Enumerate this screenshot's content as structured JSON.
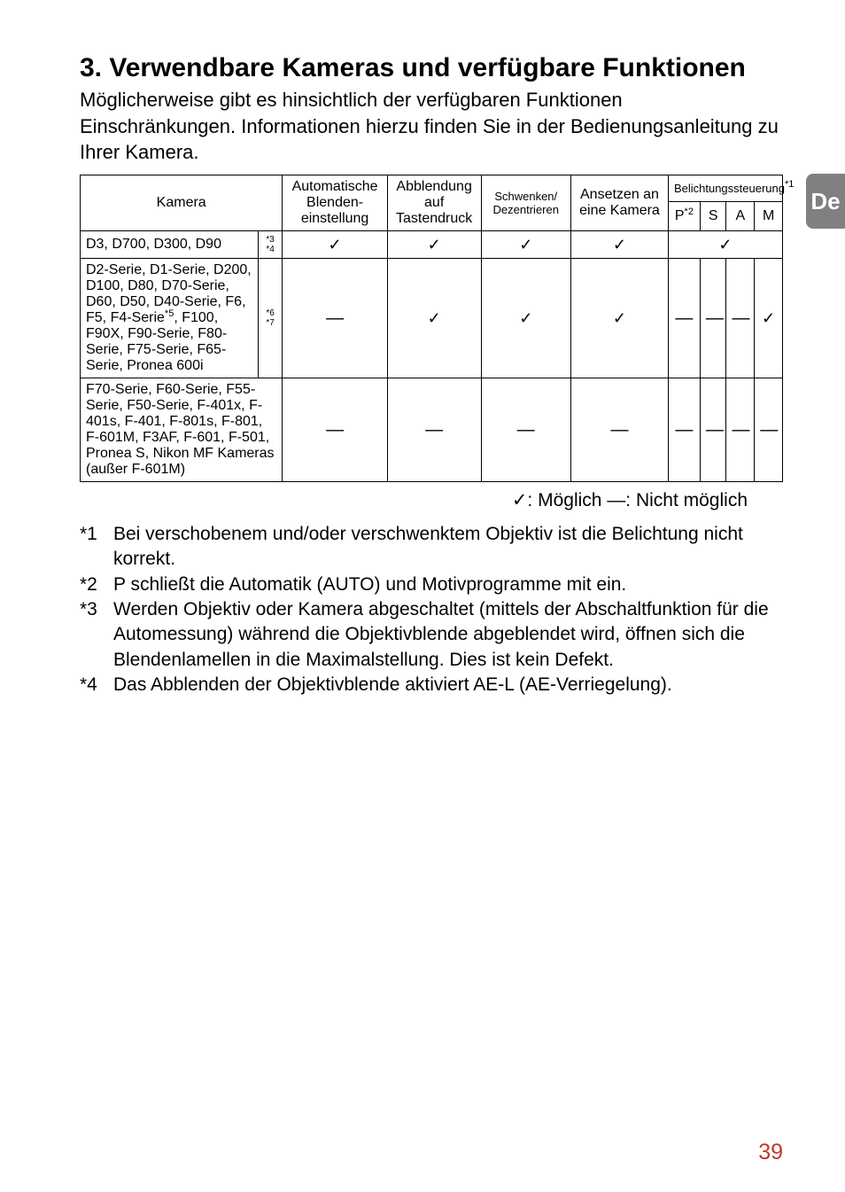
{
  "heading": "3. Verwendbare Kameras und verfügbare Funktionen",
  "intro": "Möglicherweise gibt es hinsichtlich der verfügbaren Funktionen Einschränkungen. Informationen hierzu finden Sie in der Bedienungsanleitung zu Ihrer Kamera.",
  "table": {
    "head": {
      "kamera": "Kamera",
      "auto_blenden": "Automatische Blenden-\neinstellung",
      "abblendung": "Abblendung auf Tastendruck",
      "schwenken": "Schwenken/\nDezentrieren",
      "ansetzen": "Ansetzen an eine Kamera",
      "belichtung": "Belichtungssteuerung",
      "belichtung_sup": "*1",
      "p": "P",
      "p_sup": "*2",
      "s": "S",
      "a": "A",
      "m": "M"
    },
    "rows": [
      {
        "cam": "D3, D700, D300, D90",
        "notes": "*3\n*4",
        "notes_present": true,
        "r1": "✓",
        "r2": "✓",
        "r3": "✓",
        "r4": "✓",
        "psam_merged": true,
        "psam_value": "✓"
      },
      {
        "cam": "D2-Serie, D1-Serie, D200, D100, D80, D70-Serie, D60, D50, D40-Serie, F6, F5, F4-Serie*5, F100, F90X, F90-Serie, F80-Serie, F75-Serie, F65-Serie, Pronea 600i",
        "cam_sup_marker": "*5",
        "notes": "*6\n*7",
        "notes_present": true,
        "r1": "—",
        "r2": "✓",
        "r3": "✓",
        "r4": "✓",
        "psam_merged": false,
        "p": "—",
        "s": "—",
        "a": "—",
        "m": "✓"
      },
      {
        "cam": "F70-Serie, F60-Serie, F55-Serie, F50-Serie, F-401x, F-401s, F-401, F-801s, F-801, F-601M, F3AF, F-601, F-501, Pronea S, Nikon MF Kameras (außer F-601M)",
        "notes": "",
        "notes_present": false,
        "r1": "—",
        "r2": "—",
        "r3": "—",
        "r4": "—",
        "psam_merged": false,
        "p": "—",
        "s": "—",
        "a": "—",
        "m": "—"
      }
    ]
  },
  "legend": "✓: Möglich   —: Nicht möglich",
  "footnotes": [
    {
      "marker": "*1",
      "text": "Bei verschobenem und/oder verschwenktem Objektiv ist die Belichtung nicht korrekt."
    },
    {
      "marker": "*2",
      "text": "P schließt die Automatik (AUTO) und Motivprogramme mit ein."
    },
    {
      "marker": "*3",
      "text": "Werden Objektiv oder Kamera abgeschaltet (mittels der Abschaltfunktion für die Automessung) während die Objektivblende abgeblendet wird, öffnen sich die Blendenlamellen in die Maximalstellung. Dies ist kein Defekt."
    },
    {
      "marker": "*4",
      "text": "Das Abblenden der Objektivblende aktiviert AE-L (AE-Verriegelung)."
    }
  ],
  "tab": "De",
  "page": "39",
  "colors": {
    "accent": "#c0392b",
    "tab_bg": "#808080"
  }
}
